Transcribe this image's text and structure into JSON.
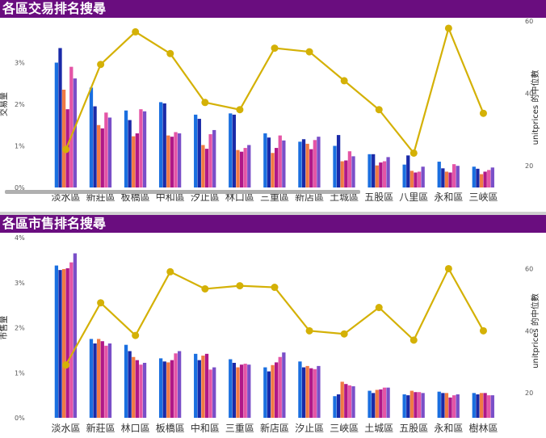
{
  "colors": {
    "header_bg": "#6a0d7f",
    "line": "#d4b106",
    "series": [
      "#1a6fe0",
      "#1a2aa8",
      "#f07a45",
      "#b01888",
      "#e455a6",
      "#7a4fc8"
    ]
  },
  "chart_data": [
    {
      "type": "bar",
      "title": "各區交易排名搜尋",
      "categories": [
        "淡水區",
        "新莊區",
        "板橋區",
        "中和區",
        "汐止區",
        "林口區",
        "三重區",
        "新店區",
        "土城區",
        "五股區",
        "八里區",
        "永和區",
        "三峽區"
      ],
      "ylabel": "交易量",
      "y2label": "unitprices 的中位數",
      "ylim": [
        0,
        4
      ],
      "ytick_labels": [
        "0%",
        "1%",
        "2%",
        "3%"
      ],
      "ytick_values": [
        0,
        1,
        2,
        3
      ],
      "y2lim": [
        14,
        60
      ],
      "y2tick_labels": [
        "20",
        "40",
        "60"
      ],
      "y2tick_values": [
        20,
        40,
        60
      ],
      "series": [
        {
          "values": [
            3.0,
            2.4,
            1.85,
            2.05,
            1.75,
            1.78,
            1.3,
            1.1,
            1.0,
            0.8,
            0.55,
            0.62,
            0.5
          ]
        },
        {
          "values": [
            3.35,
            1.95,
            1.62,
            2.02,
            1.65,
            1.75,
            1.2,
            1.16,
            1.26,
            0.8,
            0.77,
            0.46,
            0.45
          ]
        },
        {
          "values": [
            2.35,
            1.5,
            1.23,
            1.25,
            1.02,
            0.9,
            0.83,
            1.05,
            0.63,
            0.53,
            0.4,
            0.38,
            0.32
          ]
        },
        {
          "values": [
            1.88,
            1.42,
            1.3,
            1.22,
            0.93,
            0.86,
            0.95,
            0.92,
            0.65,
            0.6,
            0.36,
            0.36,
            0.38
          ]
        },
        {
          "values": [
            2.9,
            1.8,
            1.88,
            1.33,
            1.28,
            0.95,
            1.25,
            1.14,
            0.87,
            0.63,
            0.38,
            0.56,
            0.42
          ]
        },
        {
          "values": [
            2.62,
            1.68,
            1.83,
            1.3,
            1.38,
            1.02,
            1.13,
            1.22,
            0.75,
            0.73,
            0.5,
            0.52,
            0.48
          ]
        }
      ],
      "line": {
        "values": [
          24.5,
          48,
          57,
          51,
          37.5,
          35.5,
          52.5,
          51.5,
          43.5,
          35.5,
          23.5,
          58,
          34.5
        ]
      }
    },
    {
      "type": "bar",
      "title": "各區市售排名搜尋",
      "categories": [
        "淡水區",
        "新莊區",
        "林口區",
        "板橋區",
        "中和區",
        "三重區",
        "新店區",
        "汐止區",
        "三峽區",
        "土城區",
        "五股區",
        "永和區",
        "樹林區"
      ],
      "ylabel": "市售量",
      "y2label": "unitprices 的中位數",
      "ylim": [
        0,
        4
      ],
      "ytick_labels": [
        "0%",
        "1%",
        "2%",
        "3%",
        "4%"
      ],
      "ytick_values": [
        0,
        1,
        2,
        3,
        4
      ],
      "y2lim": [
        12,
        70
      ],
      "y2tick_labels": [
        "20",
        "40",
        "60"
      ],
      "y2tick_values": [
        20,
        40,
        60
      ],
      "series": [
        {
          "values": [
            3.38,
            1.75,
            1.62,
            1.32,
            1.42,
            1.3,
            1.12,
            1.25,
            0.48,
            0.6,
            0.52,
            0.58,
            0.55
          ]
        },
        {
          "values": [
            3.28,
            1.65,
            1.48,
            1.25,
            1.28,
            1.22,
            1.03,
            1.12,
            0.52,
            0.55,
            0.5,
            0.55,
            0.52
          ]
        },
        {
          "values": [
            3.3,
            1.75,
            1.35,
            1.23,
            1.38,
            1.12,
            1.17,
            1.15,
            0.8,
            0.62,
            0.6,
            0.55,
            0.55
          ]
        },
        {
          "values": [
            3.32,
            1.7,
            1.28,
            1.28,
            1.42,
            1.18,
            1.23,
            1.1,
            0.75,
            0.63,
            0.57,
            0.45,
            0.55
          ]
        },
        {
          "values": [
            3.45,
            1.6,
            1.18,
            1.43,
            1.07,
            1.2,
            1.35,
            1.08,
            0.72,
            0.67,
            0.57,
            0.5,
            0.5
          ]
        },
        {
          "values": [
            3.65,
            1.65,
            1.22,
            1.48,
            1.12,
            1.18,
            1.45,
            1.15,
            0.7,
            0.67,
            0.55,
            0.52,
            0.5
          ]
        }
      ],
      "line": {
        "values": [
          29,
          49,
          38.5,
          59,
          53.5,
          54.5,
          54,
          40,
          39,
          47.5,
          37,
          60,
          40
        ]
      }
    }
  ]
}
